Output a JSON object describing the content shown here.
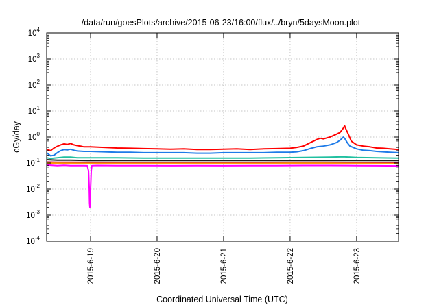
{
  "chart_data": {
    "type": "line",
    "title": "/data/run/goesPlots/archive/2015-06-23/16:00/flux/../bryn/5daysMoon.plot",
    "xlabel": "Coordinated Universal Time (UTC)",
    "ylabel": "cGy/day",
    "yscale": "log",
    "ylim": [
      0.0001,
      10000
    ],
    "xlim": [
      -0.66,
      4.63
    ],
    "x_origin_label": "2015-6-19",
    "x_unit": "days",
    "grid": true,
    "legend": "none",
    "ytick_values": [
      -4,
      -3,
      -2,
      -1,
      0,
      1,
      2,
      3,
      4
    ],
    "ytick_labels": [
      {
        "base": "10",
        "exp": "-4"
      },
      {
        "base": "10",
        "exp": "-3"
      },
      {
        "base": "10",
        "exp": "-2"
      },
      {
        "base": "10",
        "exp": "-1"
      },
      {
        "base": "10",
        "exp": "0"
      },
      {
        "base": "10",
        "exp": "1"
      },
      {
        "base": "10",
        "exp": "2"
      },
      {
        "base": "10",
        "exp": "3"
      },
      {
        "base": "10",
        "exp": "4"
      }
    ],
    "xtick_values": [
      0,
      1,
      2,
      3,
      4
    ],
    "xtick_labels": [
      "2015-6-19",
      "2015-6-20",
      "2015-6-21",
      "2015-6-22",
      "2015-6-23"
    ],
    "series": [
      {
        "color": "#ff0000",
        "points": [
          [
            -0.66,
            0.34
          ],
          [
            -0.6,
            0.3
          ],
          [
            -0.55,
            0.38
          ],
          [
            -0.5,
            0.44
          ],
          [
            -0.45,
            0.5
          ],
          [
            -0.4,
            0.55
          ],
          [
            -0.35,
            0.52
          ],
          [
            -0.3,
            0.57
          ],
          [
            -0.25,
            0.5
          ],
          [
            -0.2,
            0.47
          ],
          [
            -0.15,
            0.45
          ],
          [
            -0.1,
            0.42
          ],
          [
            0.0,
            0.42
          ],
          [
            0.2,
            0.4
          ],
          [
            0.4,
            0.38
          ],
          [
            0.6,
            0.37
          ],
          [
            0.8,
            0.36
          ],
          [
            1.0,
            0.35
          ],
          [
            1.2,
            0.34
          ],
          [
            1.4,
            0.35
          ],
          [
            1.6,
            0.33
          ],
          [
            1.8,
            0.33
          ],
          [
            2.0,
            0.34
          ],
          [
            2.2,
            0.35
          ],
          [
            2.4,
            0.33
          ],
          [
            2.6,
            0.35
          ],
          [
            2.8,
            0.36
          ],
          [
            3.0,
            0.37
          ],
          [
            3.1,
            0.4
          ],
          [
            3.2,
            0.45
          ],
          [
            3.3,
            0.6
          ],
          [
            3.4,
            0.8
          ],
          [
            3.45,
            0.9
          ],
          [
            3.5,
            0.85
          ],
          [
            3.6,
            1.0
          ],
          [
            3.7,
            1.3
          ],
          [
            3.75,
            1.5
          ],
          [
            3.8,
            2.2
          ],
          [
            3.82,
            2.7
          ],
          [
            3.84,
            2.0
          ],
          [
            3.88,
            1.2
          ],
          [
            3.92,
            0.7
          ],
          [
            4.0,
            0.5
          ],
          [
            4.1,
            0.45
          ],
          [
            4.2,
            0.42
          ],
          [
            4.3,
            0.38
          ],
          [
            4.4,
            0.37
          ],
          [
            4.5,
            0.35
          ],
          [
            4.63,
            0.33
          ]
        ]
      },
      {
        "color": "#1e7be8",
        "points": [
          [
            -0.66,
            0.25
          ],
          [
            -0.6,
            0.19
          ],
          [
            -0.55,
            0.2
          ],
          [
            -0.5,
            0.25
          ],
          [
            -0.45,
            0.3
          ],
          [
            -0.4,
            0.33
          ],
          [
            -0.35,
            0.32
          ],
          [
            -0.3,
            0.34
          ],
          [
            -0.25,
            0.31
          ],
          [
            -0.2,
            0.29
          ],
          [
            -0.1,
            0.28
          ],
          [
            0.0,
            0.28
          ],
          [
            0.2,
            0.27
          ],
          [
            0.4,
            0.26
          ],
          [
            0.6,
            0.26
          ],
          [
            0.8,
            0.25
          ],
          [
            1.0,
            0.25
          ],
          [
            1.2,
            0.25
          ],
          [
            1.4,
            0.25
          ],
          [
            1.6,
            0.24
          ],
          [
            1.8,
            0.24
          ],
          [
            2.0,
            0.25
          ],
          [
            2.2,
            0.25
          ],
          [
            2.4,
            0.25
          ],
          [
            2.6,
            0.25
          ],
          [
            2.8,
            0.26
          ],
          [
            3.0,
            0.26
          ],
          [
            3.1,
            0.27
          ],
          [
            3.2,
            0.3
          ],
          [
            3.3,
            0.36
          ],
          [
            3.4,
            0.42
          ],
          [
            3.5,
            0.45
          ],
          [
            3.6,
            0.5
          ],
          [
            3.7,
            0.62
          ],
          [
            3.75,
            0.75
          ],
          [
            3.8,
            1.0
          ],
          [
            3.82,
            0.9
          ],
          [
            3.86,
            0.6
          ],
          [
            3.9,
            0.45
          ],
          [
            4.0,
            0.35
          ],
          [
            4.1,
            0.31
          ],
          [
            4.2,
            0.3
          ],
          [
            4.3,
            0.28
          ],
          [
            4.4,
            0.27
          ],
          [
            4.5,
            0.26
          ],
          [
            4.63,
            0.25
          ]
        ]
      },
      {
        "color": "#20c0a0",
        "points": [
          [
            -0.66,
            0.16
          ],
          [
            -0.6,
            0.15
          ],
          [
            -0.5,
            0.16
          ],
          [
            -0.4,
            0.17
          ],
          [
            -0.3,
            0.17
          ],
          [
            -0.2,
            0.16
          ],
          [
            -0.1,
            0.16
          ],
          [
            0.0,
            0.16
          ],
          [
            0.4,
            0.16
          ],
          [
            0.8,
            0.155
          ],
          [
            1.2,
            0.155
          ],
          [
            1.6,
            0.155
          ],
          [
            2.0,
            0.155
          ],
          [
            2.4,
            0.155
          ],
          [
            2.8,
            0.16
          ],
          [
            3.2,
            0.165
          ],
          [
            3.6,
            0.17
          ],
          [
            3.8,
            0.175
          ],
          [
            4.0,
            0.165
          ],
          [
            4.3,
            0.16
          ],
          [
            4.63,
            0.155
          ]
        ]
      },
      {
        "color": "#202020",
        "points": [
          [
            -0.66,
            0.135
          ],
          [
            -0.5,
            0.13
          ],
          [
            -0.3,
            0.13
          ],
          [
            0.0,
            0.125
          ],
          [
            0.5,
            0.125
          ],
          [
            1.0,
            0.125
          ],
          [
            1.5,
            0.125
          ],
          [
            2.0,
            0.125
          ],
          [
            2.5,
            0.125
          ],
          [
            3.0,
            0.125
          ],
          [
            3.5,
            0.125
          ],
          [
            4.0,
            0.125
          ],
          [
            4.63,
            0.125
          ]
        ]
      },
      {
        "color": "#cc0044",
        "points": [
          [
            -0.66,
            0.11
          ],
          [
            -0.5,
            0.108
          ],
          [
            -0.3,
            0.108
          ],
          [
            0.0,
            0.107
          ],
          [
            0.5,
            0.106
          ],
          [
            1.0,
            0.106
          ],
          [
            1.5,
            0.106
          ],
          [
            2.0,
            0.106
          ],
          [
            2.5,
            0.106
          ],
          [
            3.0,
            0.107
          ],
          [
            3.5,
            0.107
          ],
          [
            4.0,
            0.106
          ],
          [
            4.63,
            0.105
          ]
        ]
      },
      {
        "color": "#ffa000",
        "points": [
          [
            -0.66,
            0.1
          ],
          [
            -0.5,
            0.098
          ],
          [
            0.0,
            0.097
          ],
          [
            0.5,
            0.097
          ],
          [
            1.0,
            0.097
          ],
          [
            1.5,
            0.097
          ],
          [
            2.0,
            0.097
          ],
          [
            2.5,
            0.097
          ],
          [
            3.0,
            0.098
          ],
          [
            3.5,
            0.098
          ],
          [
            4.0,
            0.097
          ],
          [
            4.63,
            0.096
          ]
        ]
      },
      {
        "color": "#ff00ff",
        "points": [
          [
            -0.66,
            0.085
          ],
          [
            -0.5,
            0.08
          ],
          [
            -0.4,
            0.082
          ],
          [
            -0.3,
            0.08
          ],
          [
            -0.1,
            0.08
          ],
          [
            -0.05,
            0.079
          ],
          [
            -0.03,
            0.05
          ],
          [
            -0.02,
            0.01
          ],
          [
            -0.015,
            0.003
          ],
          [
            -0.01,
            0.002
          ],
          [
            -0.005,
            0.003
          ],
          [
            0.0,
            0.01
          ],
          [
            0.01,
            0.05
          ],
          [
            0.02,
            0.08
          ],
          [
            0.1,
            0.081
          ],
          [
            0.4,
            0.08
          ],
          [
            0.8,
            0.08
          ],
          [
            1.2,
            0.079
          ],
          [
            1.6,
            0.08
          ],
          [
            2.0,
            0.079
          ],
          [
            2.4,
            0.08
          ],
          [
            2.8,
            0.08
          ],
          [
            3.2,
            0.081
          ],
          [
            3.6,
            0.081
          ],
          [
            4.0,
            0.08
          ],
          [
            4.3,
            0.079
          ],
          [
            4.63,
            0.078
          ]
        ]
      }
    ]
  }
}
